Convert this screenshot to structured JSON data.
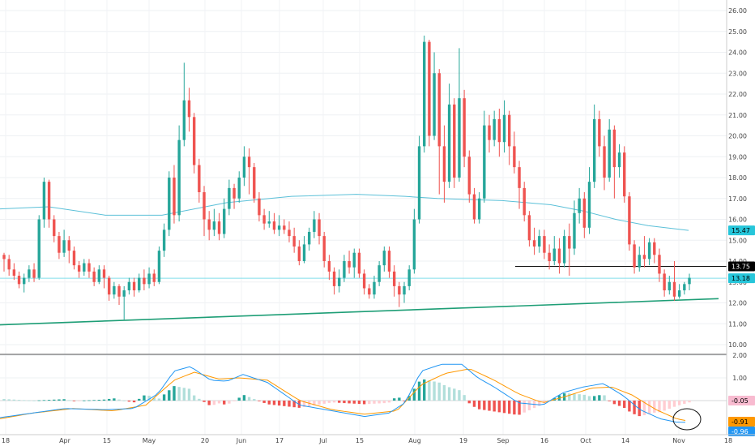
{
  "chart_data": {
    "type": "candlestick",
    "price_axis": {
      "ticks": [
        "26.00",
        "25.00",
        "24.00",
        "23.00",
        "22.00",
        "21.00",
        "20.00",
        "19.00",
        "18.00",
        "17.00",
        "16.00",
        "15.00",
        "14.00",
        "13.00",
        "12.00",
        "11.00",
        "10.00"
      ],
      "tick_values": [
        26,
        25,
        24,
        23,
        22,
        21,
        20,
        19,
        18,
        17,
        16,
        15,
        14,
        13,
        12,
        11,
        10
      ],
      "range": [
        9.6,
        26.4
      ]
    },
    "x_axis": {
      "labels": [
        "18",
        "Apr",
        "15",
        "May",
        "20",
        "Jun",
        "17",
        "Jul",
        "15",
        "Aug",
        "19",
        "Sep",
        "16",
        "Oct",
        "14",
        "Nov",
        "18"
      ]
    },
    "price_badges": [
      {
        "label": "15.47",
        "value": 15.47,
        "color": "#26c6da",
        "text_color": "#000000"
      },
      {
        "label": "13.75",
        "value": 13.75,
        "color": "#000000",
        "text_color": "#ffffff"
      },
      {
        "label": "13.18",
        "value": 13.18,
        "color": "#26c6da",
        "text_color": "#000000"
      }
    ],
    "macd_axis": {
      "ticks": [
        "2.00",
        "1.00",
        "0.00"
      ],
      "tick_values": [
        2,
        1,
        0
      ],
      "range": [
        -1.45,
        2.05
      ]
    },
    "macd_badges": [
      {
        "label": "-0.05",
        "value": -0.05,
        "color": "#f8bbd0",
        "text_color": "#000000"
      },
      {
        "label": "-0.91",
        "value": -0.91,
        "color": "#ff9800",
        "text_color": "#000000"
      },
      {
        "label": "-0.96",
        "value": -0.96,
        "color": "#2196f3",
        "text_color": "#ffffff"
      }
    ],
    "colors": {
      "up": "#26a69a",
      "down": "#ef5350",
      "ma": "#5bc0d8",
      "trendline": "#1e9e76",
      "macd_line": "#2196f3",
      "signal_line": "#ff9800",
      "hist_pos_strong": "#26a69a",
      "hist_pos_weak": "#b2dfdb",
      "hist_neg_strong": "#ef5350",
      "hist_neg_weak": "#ffcdd2"
    },
    "candles": [
      [
        14.3,
        14.1,
        14.4,
        13.5
      ],
      [
        14.1,
        13.6,
        14.3,
        13.3
      ],
      [
        13.6,
        13.3,
        13.9,
        13.1
      ],
      [
        13.3,
        12.9,
        13.5,
        12.7
      ],
      [
        12.9,
        13.2,
        13.4,
        12.5
      ],
      [
        13.2,
        13.6,
        13.8,
        13.0
      ],
      [
        13.6,
        13.2,
        13.9,
        13.0
      ],
      [
        13.2,
        16.0,
        16.2,
        13.1
      ],
      [
        16.0,
        17.8,
        18.0,
        15.6
      ],
      [
        17.8,
        16.0,
        17.9,
        15.6
      ],
      [
        16.0,
        15.2,
        16.2,
        14.9
      ],
      [
        15.2,
        14.4,
        15.4,
        14.1
      ],
      [
        14.4,
        15.0,
        15.5,
        14.2
      ],
      [
        15.0,
        14.5,
        15.2,
        13.9
      ],
      [
        14.5,
        13.8,
        14.7,
        13.6
      ],
      [
        13.8,
        13.5,
        14.0,
        13.2
      ],
      [
        13.5,
        13.9,
        14.1,
        13.3
      ],
      [
        13.9,
        13.5,
        14.1,
        13.2
      ],
      [
        13.5,
        13.0,
        13.7,
        12.8
      ],
      [
        13.0,
        13.6,
        13.8,
        12.9
      ],
      [
        13.6,
        13.2,
        13.8,
        12.7
      ],
      [
        13.2,
        12.4,
        13.3,
        12.1
      ],
      [
        12.4,
        12.8,
        13.0,
        12.2
      ],
      [
        12.8,
        12.3,
        12.9,
        11.9
      ],
      [
        12.3,
        12.6,
        12.8,
        11.2
      ],
      [
        12.6,
        13.0,
        13.2,
        12.4
      ],
      [
        13.0,
        12.6,
        13.2,
        12.3
      ],
      [
        12.6,
        13.2,
        13.4,
        12.5
      ],
      [
        13.2,
        12.9,
        13.6,
        12.6
      ],
      [
        12.9,
        13.4,
        13.7,
        12.7
      ],
      [
        13.4,
        13.0,
        13.6,
        12.8
      ],
      [
        13.0,
        14.5,
        14.7,
        12.9
      ],
      [
        14.5,
        15.5,
        15.8,
        14.2
      ],
      [
        15.5,
        18.0,
        18.3,
        15.2
      ],
      [
        18.0,
        16.2,
        18.6,
        15.8
      ],
      [
        16.2,
        19.8,
        20.5,
        15.9
      ],
      [
        19.8,
        21.7,
        23.5,
        19.5
      ],
      [
        21.7,
        20.9,
        22.3,
        20.2
      ],
      [
        20.9,
        18.6,
        21.1,
        18.2
      ],
      [
        18.6,
        17.3,
        18.9,
        16.8
      ],
      [
        17.3,
        16.0,
        17.6,
        15.2
      ],
      [
        16.0,
        15.5,
        16.4,
        15.0
      ],
      [
        15.5,
        15.9,
        16.5,
        15.2
      ],
      [
        15.9,
        15.3,
        16.3,
        15.0
      ],
      [
        15.3,
        16.5,
        17.0,
        15.1
      ],
      [
        16.5,
        17.5,
        17.9,
        16.2
      ],
      [
        17.5,
        17.0,
        17.7,
        16.5
      ],
      [
        17.0,
        18.0,
        18.3,
        16.8
      ],
      [
        18.0,
        19.0,
        19.5,
        17.6
      ],
      [
        19.0,
        18.5,
        19.4,
        17.2
      ],
      [
        18.5,
        17.0,
        18.7,
        16.8
      ],
      [
        17.0,
        16.2,
        17.3,
        15.9
      ],
      [
        16.2,
        15.8,
        16.5,
        15.5
      ],
      [
        15.8,
        15.9,
        16.4,
        15.6
      ],
      [
        15.9,
        15.5,
        16.3,
        15.3
      ],
      [
        15.5,
        15.7,
        16.2,
        15.2
      ],
      [
        15.7,
        15.5,
        16.0,
        15.3
      ],
      [
        15.5,
        15.2,
        15.9,
        14.9
      ],
      [
        15.2,
        14.7,
        15.6,
        14.4
      ],
      [
        14.7,
        14.0,
        15.0,
        13.8
      ],
      [
        14.0,
        14.8,
        15.2,
        13.9
      ],
      [
        14.8,
        15.4,
        15.6,
        14.5
      ],
      [
        15.4,
        16.0,
        16.4,
        15.1
      ],
      [
        16.0,
        15.2,
        16.3,
        14.8
      ],
      [
        15.2,
        14.0,
        15.4,
        13.7
      ],
      [
        14.0,
        13.5,
        14.3,
        13.1
      ],
      [
        13.5,
        12.8,
        13.7,
        12.4
      ],
      [
        12.8,
        13.2,
        13.6,
        12.5
      ],
      [
        13.2,
        14.0,
        14.3,
        13.0
      ],
      [
        14.0,
        13.7,
        14.5,
        13.4
      ],
      [
        13.7,
        14.4,
        14.6,
        13.2
      ],
      [
        14.4,
        13.4,
        14.6,
        13.2
      ],
      [
        13.4,
        12.7,
        13.6,
        12.4
      ],
      [
        12.7,
        12.4,
        12.9,
        12.2
      ],
      [
        12.4,
        13.0,
        13.3,
        12.2
      ],
      [
        13.0,
        13.8,
        14.0,
        12.8
      ],
      [
        13.8,
        14.5,
        14.7,
        13.5
      ],
      [
        14.5,
        13.5,
        14.7,
        13.2
      ],
      [
        13.5,
        12.8,
        13.8,
        12.3
      ],
      [
        12.8,
        12.4,
        13.0,
        11.8
      ],
      [
        12.4,
        12.8,
        13.0,
        12.0
      ],
      [
        12.8,
        13.6,
        13.8,
        12.6
      ],
      [
        13.6,
        16.0,
        16.5,
        13.4
      ],
      [
        16.0,
        19.5,
        20.0,
        15.8
      ],
      [
        19.5,
        24.5,
        24.8,
        19.2
      ],
      [
        24.5,
        20.0,
        24.6,
        19.5
      ],
      [
        20.0,
        23.0,
        24.0,
        19.8
      ],
      [
        23.0,
        19.5,
        23.2,
        17.2
      ],
      [
        19.5,
        17.8,
        20.5,
        16.8
      ],
      [
        17.8,
        21.5,
        22.5,
        17.5
      ],
      [
        21.5,
        18.0,
        21.8,
        17.5
      ],
      [
        18.0,
        21.8,
        24.2,
        17.8
      ],
      [
        21.8,
        19.0,
        22.2,
        18.5
      ],
      [
        19.0,
        17.2,
        19.3,
        16.8
      ],
      [
        17.2,
        16.0,
        17.5,
        15.8
      ],
      [
        16.0,
        17.0,
        17.3,
        15.8
      ],
      [
        17.0,
        20.5,
        21.2,
        16.8
      ],
      [
        20.5,
        19.8,
        21.0,
        19.2
      ],
      [
        19.8,
        20.8,
        21.2,
        19.5
      ],
      [
        20.8,
        19.7,
        21.3,
        19.0
      ],
      [
        19.7,
        21.0,
        21.7,
        19.2
      ],
      [
        21.0,
        19.5,
        21.2,
        18.6
      ],
      [
        19.5,
        18.5,
        20.2,
        18.2
      ],
      [
        18.5,
        17.5,
        18.8,
        16.5
      ],
      [
        17.5,
        16.2,
        17.8,
        15.9
      ],
      [
        16.2,
        15.0,
        16.4,
        14.7
      ],
      [
        15.0,
        14.7,
        15.6,
        14.3
      ],
      [
        14.7,
        15.2,
        15.5,
        14.4
      ],
      [
        15.2,
        14.4,
        15.5,
        14.1
      ],
      [
        14.4,
        14.0,
        14.8,
        13.6
      ],
      [
        14.0,
        14.6,
        15.2,
        13.8
      ],
      [
        14.6,
        13.9,
        15.1,
        13.4
      ],
      [
        13.9,
        15.2,
        15.5,
        13.7
      ],
      [
        15.2,
        14.6,
        15.8,
        13.3
      ],
      [
        14.6,
        16.3,
        16.9,
        14.3
      ],
      [
        16.3,
        17.0,
        17.5,
        15.8
      ],
      [
        17.0,
        15.6,
        17.3,
        15.1
      ],
      [
        15.6,
        17.8,
        18.5,
        15.3
      ],
      [
        17.8,
        20.8,
        21.5,
        17.5
      ],
      [
        20.8,
        19.5,
        21.2,
        19.0
      ],
      [
        19.5,
        18.0,
        20.0,
        17.4
      ],
      [
        18.0,
        20.3,
        20.8,
        17.8
      ],
      [
        20.3,
        18.5,
        20.5,
        17.0
      ],
      [
        18.5,
        19.2,
        19.6,
        18.0
      ],
      [
        19.2,
        17.1,
        19.5,
        16.8
      ],
      [
        17.1,
        14.8,
        17.3,
        14.5
      ],
      [
        14.8,
        13.7,
        15.0,
        13.4
      ],
      [
        13.7,
        14.3,
        14.7,
        13.5
      ],
      [
        14.3,
        14.1,
        15.2,
        13.7
      ],
      [
        14.1,
        14.9,
        15.1,
        13.8
      ],
      [
        14.9,
        14.3,
        15.1,
        13.9
      ],
      [
        14.3,
        13.4,
        14.6,
        13.0
      ],
      [
        13.4,
        12.6,
        13.6,
        12.3
      ],
      [
        12.6,
        13.0,
        13.3,
        12.4
      ],
      [
        13.0,
        12.3,
        14.0,
        12.1
      ],
      [
        12.3,
        12.6,
        12.9,
        12.2
      ],
      [
        12.6,
        12.9,
        13.0,
        12.4
      ],
      [
        12.9,
        13.2,
        13.4,
        12.6
      ]
    ],
    "ma": [
      [
        0,
        16.5
      ],
      [
        60,
        16.6
      ],
      [
        130,
        16.2
      ],
      [
        200,
        16.2
      ],
      [
        280,
        16.8
      ],
      [
        360,
        17.1
      ],
      [
        440,
        17.2
      ],
      [
        500,
        17.1
      ],
      [
        540,
        17.0
      ],
      [
        620,
        16.9
      ],
      [
        680,
        16.7
      ],
      [
        720,
        16.4
      ],
      [
        760,
        16.0
      ],
      [
        800,
        15.7
      ],
      [
        850,
        15.47
      ]
    ],
    "trendline": {
      "x1": 0,
      "y1": 10.95,
      "x2": 887,
      "y2": 12.2
    },
    "hline": {
      "x1": 636,
      "x2": 932,
      "value": 13.75
    },
    "current_line": {
      "value": 13.18
    }
  }
}
